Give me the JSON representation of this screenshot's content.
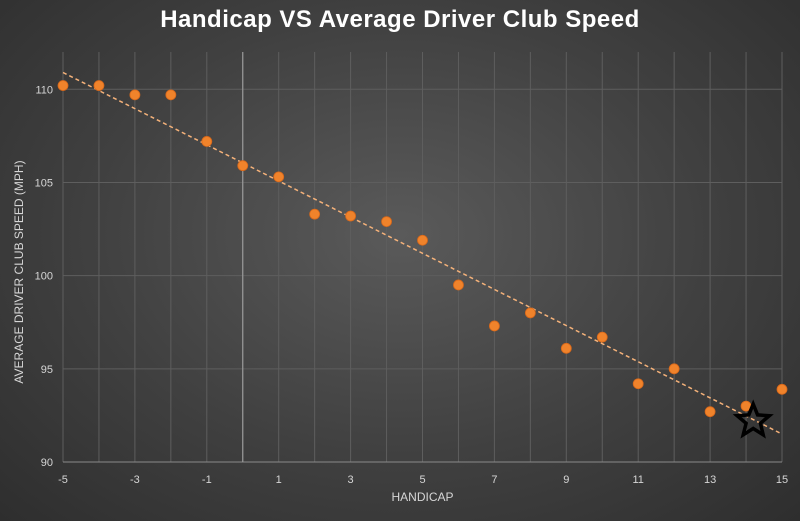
{
  "chart_data": {
    "type": "scatter",
    "title": "Handicap VS Average Driver Club Speed",
    "xlabel": "HANDICAP",
    "ylabel": "AVERAGE DRIVER CLUB SPEED (MPH)",
    "xlim": [
      -5,
      15
    ],
    "ylim": [
      90,
      112
    ],
    "x_ticks": [
      -5,
      -3,
      -1,
      1,
      3,
      5,
      7,
      9,
      11,
      13,
      15
    ],
    "y_ticks": [
      90,
      95,
      100,
      105,
      110
    ],
    "x_grid_step": 1,
    "grid": true,
    "series": [
      {
        "x": [
          -5,
          -4,
          -3,
          -2,
          -1,
          0,
          1,
          2,
          3,
          4,
          5,
          6,
          7,
          8,
          9,
          10,
          11,
          12,
          13,
          14,
          15
        ],
        "y": [
          110.2,
          110.2,
          109.7,
          109.7,
          107.2,
          105.9,
          105.3,
          103.3,
          103.2,
          102.9,
          101.9,
          99.5,
          97.3,
          98.0,
          96.1,
          96.7,
          94.2,
          95.0,
          92.7,
          93.0,
          93.9
        ],
        "color": "#f0832b"
      }
    ],
    "trendline": {
      "type": "linear",
      "from": [
        -5,
        110.9
      ],
      "to": [
        15,
        91.5
      ],
      "color": "#f5b27a",
      "style": "dashed"
    },
    "highlight": {
      "marker": "star",
      "x": 14.2,
      "y": 92.2
    }
  }
}
